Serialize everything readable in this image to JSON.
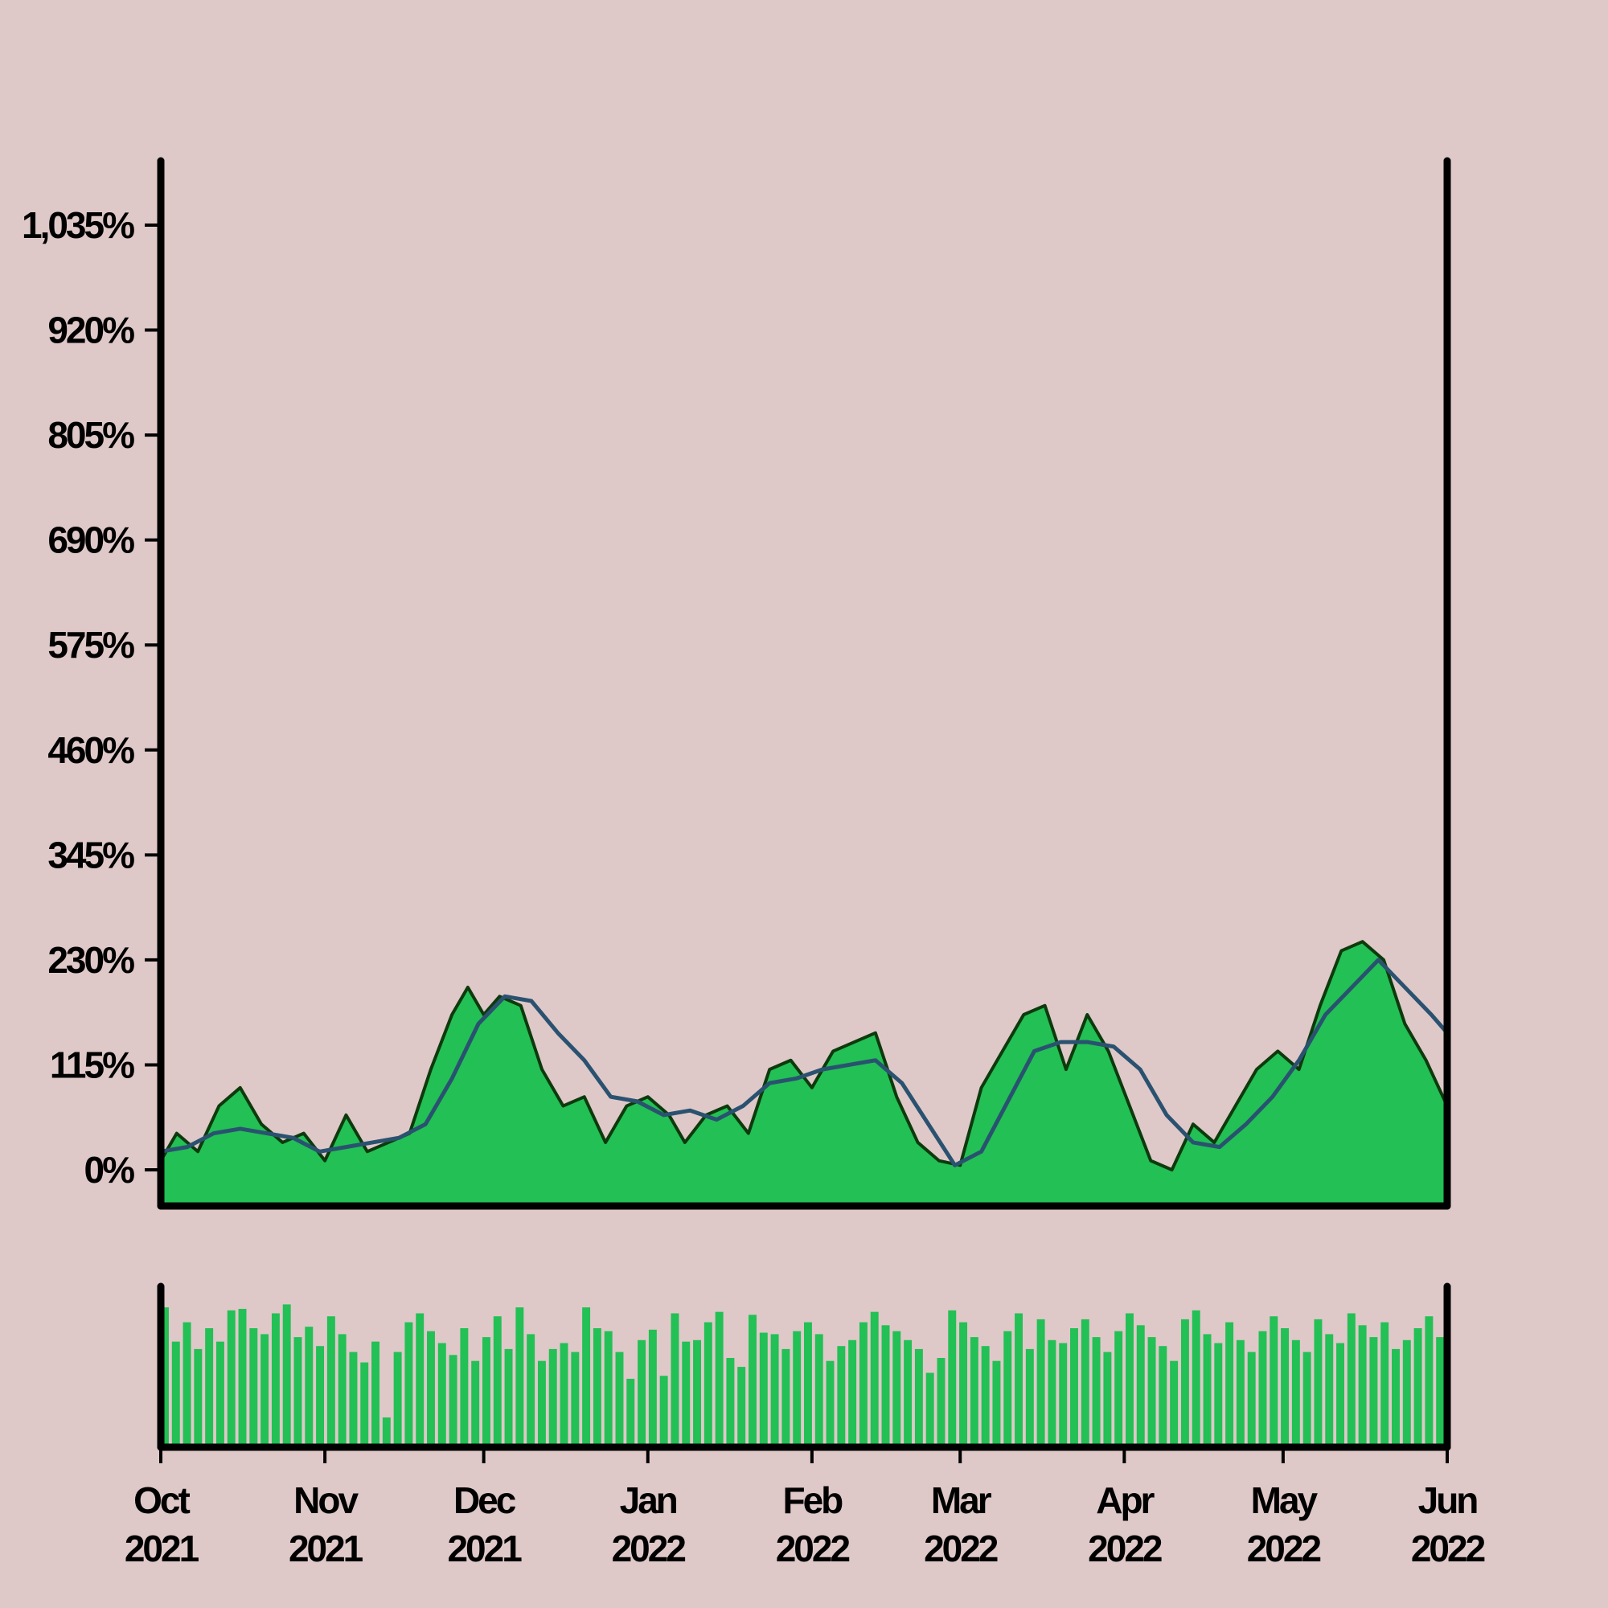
{
  "colors": {
    "background": "#dfc8c8",
    "area_fill": "#22c055",
    "price_line": "#0d3a0d",
    "moving_average": "#2a5270",
    "volume_fill": "#22c055",
    "axis": "#000000"
  },
  "chart_data": {
    "type": "area",
    "title": "",
    "xlabel": "",
    "ylabel": "",
    "x_range": [
      "2021-10-01",
      "2022-06-01"
    ],
    "ylim": [
      -30,
      1130
    ],
    "y_ticks": [
      0,
      115,
      230,
      345,
      460,
      575,
      690,
      805,
      920,
      1035
    ],
    "y_tick_labels": [
      "0%",
      "115%",
      "230%",
      "345%",
      "460%",
      "575%",
      "690%",
      "805%",
      "920%",
      "1,035%"
    ],
    "x_ticks": [
      "2021-10-01",
      "2021-11-01",
      "2021-12-01",
      "2022-01-01",
      "2022-02-01",
      "2022-03-01",
      "2022-04-01",
      "2022-05-01",
      "2022-06-01"
    ],
    "x_tick_labels": [
      [
        "Oct",
        "2021"
      ],
      [
        "Nov",
        "2021"
      ],
      [
        "Dec",
        "2021"
      ],
      [
        "Jan",
        "2022"
      ],
      [
        "Feb",
        "2022"
      ],
      [
        "Mar",
        "2022"
      ],
      [
        "Apr",
        "2022"
      ],
      [
        "May",
        "2022"
      ],
      [
        "Jun",
        "2022"
      ]
    ],
    "grid": false,
    "legend": "none",
    "series": [
      {
        "type": "area",
        "points": [
          [
            "2021-10-01",
            10
          ],
          [
            "2021-10-04",
            40
          ],
          [
            "2021-10-08",
            20
          ],
          [
            "2021-10-12",
            70
          ],
          [
            "2021-10-16",
            90
          ],
          [
            "2021-10-20",
            50
          ],
          [
            "2021-10-24",
            30
          ],
          [
            "2021-10-28",
            40
          ],
          [
            "2021-11-01",
            10
          ],
          [
            "2021-11-05",
            60
          ],
          [
            "2021-11-09",
            20
          ],
          [
            "2021-11-13",
            30
          ],
          [
            "2021-11-17",
            40
          ],
          [
            "2021-11-21",
            110
          ],
          [
            "2021-11-25",
            170
          ],
          [
            "2021-11-28",
            200
          ],
          [
            "2021-12-01",
            170
          ],
          [
            "2021-12-04",
            190
          ],
          [
            "2021-12-08",
            180
          ],
          [
            "2021-12-12",
            110
          ],
          [
            "2021-12-16",
            70
          ],
          [
            "2021-12-20",
            80
          ],
          [
            "2021-12-24",
            30
          ],
          [
            "2021-12-28",
            70
          ],
          [
            "2022-01-01",
            80
          ],
          [
            "2022-01-05",
            60
          ],
          [
            "2022-01-08",
            30
          ],
          [
            "2022-01-12",
            60
          ],
          [
            "2022-01-16",
            70
          ],
          [
            "2022-01-20",
            40
          ],
          [
            "2022-01-24",
            110
          ],
          [
            "2022-01-28",
            120
          ],
          [
            "2022-02-01",
            90
          ],
          [
            "2022-02-05",
            130
          ],
          [
            "2022-02-09",
            140
          ],
          [
            "2022-02-13",
            150
          ],
          [
            "2022-02-17",
            80
          ],
          [
            "2022-02-21",
            30
          ],
          [
            "2022-02-25",
            10
          ],
          [
            "2022-03-01",
            5
          ],
          [
            "2022-03-05",
            90
          ],
          [
            "2022-03-09",
            130
          ],
          [
            "2022-03-13",
            170
          ],
          [
            "2022-03-17",
            180
          ],
          [
            "2022-03-21",
            110
          ],
          [
            "2022-03-25",
            170
          ],
          [
            "2022-03-29",
            130
          ],
          [
            "2022-04-02",
            70
          ],
          [
            "2022-04-06",
            10
          ],
          [
            "2022-04-10",
            0
          ],
          [
            "2022-04-14",
            50
          ],
          [
            "2022-04-18",
            30
          ],
          [
            "2022-04-22",
            70
          ],
          [
            "2022-04-26",
            110
          ],
          [
            "2022-04-30",
            130
          ],
          [
            "2022-05-04",
            110
          ],
          [
            "2022-05-08",
            180
          ],
          [
            "2022-05-12",
            240
          ],
          [
            "2022-05-16",
            250
          ],
          [
            "2022-05-20",
            230
          ],
          [
            "2022-05-24",
            160
          ],
          [
            "2022-05-28",
            120
          ],
          [
            "2022-06-01",
            70
          ]
        ]
      },
      {
        "type": "line",
        "points": [
          [
            "2021-10-01",
            20
          ],
          [
            "2021-10-06",
            25
          ],
          [
            "2021-10-11",
            40
          ],
          [
            "2021-10-16",
            45
          ],
          [
            "2021-10-21",
            40
          ],
          [
            "2021-10-26",
            35
          ],
          [
            "2021-10-31",
            20
          ],
          [
            "2021-11-05",
            25
          ],
          [
            "2021-11-10",
            30
          ],
          [
            "2021-11-15",
            35
          ],
          [
            "2021-11-20",
            50
          ],
          [
            "2021-11-25",
            100
          ],
          [
            "2021-11-30",
            160
          ],
          [
            "2021-12-05",
            190
          ],
          [
            "2021-12-10",
            185
          ],
          [
            "2021-12-15",
            150
          ],
          [
            "2021-12-20",
            120
          ],
          [
            "2021-12-25",
            80
          ],
          [
            "2021-12-30",
            75
          ],
          [
            "2022-01-04",
            60
          ],
          [
            "2022-01-09",
            65
          ],
          [
            "2022-01-14",
            55
          ],
          [
            "2022-01-19",
            70
          ],
          [
            "2022-01-24",
            95
          ],
          [
            "2022-01-29",
            100
          ],
          [
            "2022-02-03",
            110
          ],
          [
            "2022-02-08",
            115
          ],
          [
            "2022-02-13",
            120
          ],
          [
            "2022-02-18",
            95
          ],
          [
            "2022-02-23",
            50
          ],
          [
            "2022-02-28",
            5
          ],
          [
            "2022-03-05",
            20
          ],
          [
            "2022-03-10",
            75
          ],
          [
            "2022-03-15",
            130
          ],
          [
            "2022-03-20",
            140
          ],
          [
            "2022-03-25",
            140
          ],
          [
            "2022-03-30",
            135
          ],
          [
            "2022-04-04",
            110
          ],
          [
            "2022-04-09",
            60
          ],
          [
            "2022-04-14",
            30
          ],
          [
            "2022-04-19",
            25
          ],
          [
            "2022-04-24",
            50
          ],
          [
            "2022-04-29",
            80
          ],
          [
            "2022-05-04",
            120
          ],
          [
            "2022-05-09",
            170
          ],
          [
            "2022-05-14",
            200
          ],
          [
            "2022-05-19",
            230
          ],
          [
            "2022-05-24",
            200
          ],
          [
            "2022-05-29",
            170
          ],
          [
            "2022-06-01",
            150
          ]
        ]
      }
    ],
    "volume": {
      "type": "bar",
      "relative_heights": [
        0.94,
        0.71,
        0.84,
        0.66,
        0.8,
        0.71,
        0.92,
        0.93,
        0.8,
        0.76,
        0.9,
        0.96,
        0.74,
        0.81,
        0.68,
        0.88,
        0.76,
        0.64,
        0.57,
        0.71,
        0.2,
        0.64,
        0.84,
        0.9,
        0.78,
        0.7,
        0.62,
        0.8,
        0.58,
        0.74,
        0.88,
        0.66,
        0.94,
        0.76,
        0.58,
        0.66,
        0.7,
        0.64,
        0.94,
        0.8,
        0.78,
        0.64,
        0.46,
        0.72,
        0.79,
        0.48,
        0.9,
        0.71,
        0.72,
        0.84,
        0.91,
        0.6,
        0.54,
        0.89,
        0.77,
        0.76,
        0.66,
        0.78,
        0.84,
        0.76,
        0.58,
        0.68,
        0.72,
        0.84,
        0.91,
        0.82,
        0.78,
        0.72,
        0.66,
        0.5,
        0.6,
        0.92,
        0.84,
        0.74,
        0.68,
        0.58,
        0.78,
        0.9,
        0.66,
        0.86,
        0.72,
        0.7,
        0.8,
        0.86,
        0.74,
        0.64,
        0.78,
        0.9,
        0.82,
        0.74,
        0.68,
        0.58,
        0.86,
        0.92,
        0.76,
        0.7,
        0.84,
        0.72,
        0.64,
        0.78,
        0.88,
        0.8,
        0.72,
        0.64,
        0.86,
        0.76,
        0.7,
        0.9,
        0.82,
        0.74,
        0.84,
        0.66,
        0.72,
        0.8,
        0.88,
        0.74
      ]
    }
  }
}
